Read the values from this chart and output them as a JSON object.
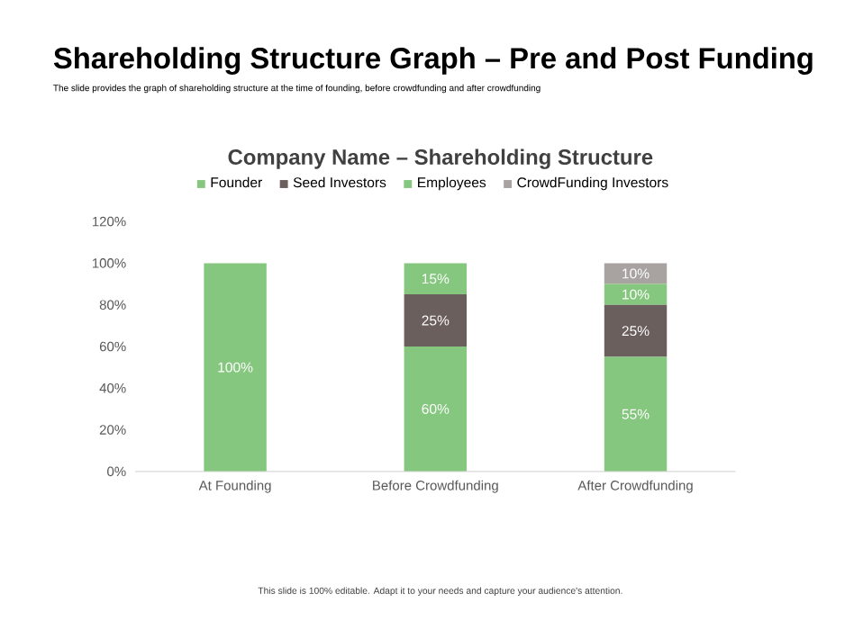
{
  "chart_data": {
    "type": "bar",
    "stacked": true,
    "title": "Shareholding Structure Graph – Pre and Post Funding",
    "subtitle": "The slide provides the graph of shareholding structure at the time of founding, before crowdfunding and after crowdfunding",
    "annotations": [
      "Company Name – Shareholding Structure",
      "This slide is 100% editable. Adapt it to your needs and capture your audience's attention."
    ],
    "categories": [
      "At Founding",
      "Before Crowdfunding",
      "After Crowdfunding"
    ],
    "series": [
      {
        "name": "Founder",
        "color": "#86c77f",
        "values": [
          100,
          60,
          55
        ],
        "value_labels": [
          "100%",
          "60%",
          "55%"
        ]
      },
      {
        "name": "Seed Investors",
        "color": "#6b5f5d",
        "values": [
          0,
          25,
          25
        ],
        "value_labels": [
          null,
          "25%",
          "25%"
        ]
      },
      {
        "name": "Employees",
        "color": "#86c77f",
        "values": [
          0,
          15,
          10
        ],
        "value_labels": [
          null,
          "15%",
          "10%"
        ]
      },
      {
        "name": "CrowdFunding Investors",
        "color": "#a8a2a0",
        "values": [
          0,
          0,
          10
        ],
        "value_labels": [
          null,
          null,
          "10%"
        ]
      }
    ],
    "ylim": [
      0,
      120
    ],
    "yticks": [
      {
        "value": 0,
        "label": "0%"
      },
      {
        "value": 20,
        "label": "20%"
      },
      {
        "value": 40,
        "label": "40%"
      },
      {
        "value": 60,
        "label": "60%"
      },
      {
        "value": 80,
        "label": "80%"
      },
      {
        "value": 100,
        "label": "100%"
      },
      {
        "value": 120,
        "label": "120%"
      }
    ],
    "legend": "top",
    "grid": false
  }
}
